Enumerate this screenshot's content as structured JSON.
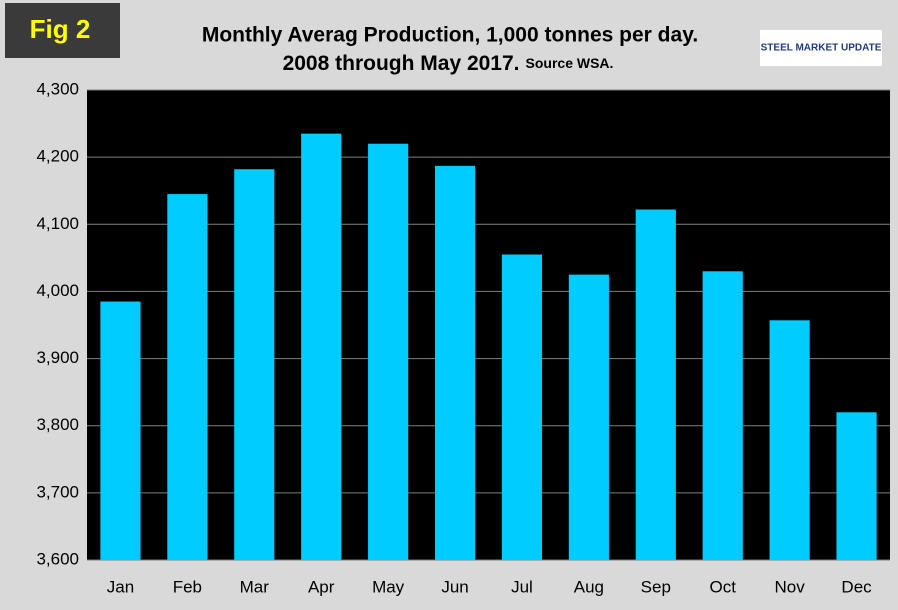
{
  "figure_label": "Fig 2",
  "logo": "STEEL MARKET UPDATE",
  "chart_data": {
    "type": "bar",
    "title": "Monthly Averag Production, 1,000 tonnes per day.",
    "subtitle": "2008 through May 2017.",
    "source": "Source WSA.",
    "categories": [
      "Jan",
      "Feb",
      "Mar",
      "Apr",
      "May",
      "Jun",
      "Jul",
      "Aug",
      "Sep",
      "Oct",
      "Nov",
      "Dec"
    ],
    "values": [
      3985,
      4145,
      4182,
      4235,
      4220,
      4187,
      4055,
      4025,
      4122,
      4030,
      3957,
      3820
    ],
    "color": "#00ccff",
    "ylim": [
      3600,
      4300
    ],
    "yticks": [
      {
        "value": 3600,
        "label": "3,600"
      },
      {
        "value": 3700,
        "label": "3,700"
      },
      {
        "value": 3800,
        "label": "3,800"
      },
      {
        "value": 3900,
        "label": "3,900"
      },
      {
        "value": 4000,
        "label": "4,000"
      },
      {
        "value": 4100,
        "label": "4,100"
      },
      {
        "value": 4200,
        "label": "4,200"
      },
      {
        "value": 4300,
        "label": "4,300"
      }
    ],
    "grid": true
  }
}
